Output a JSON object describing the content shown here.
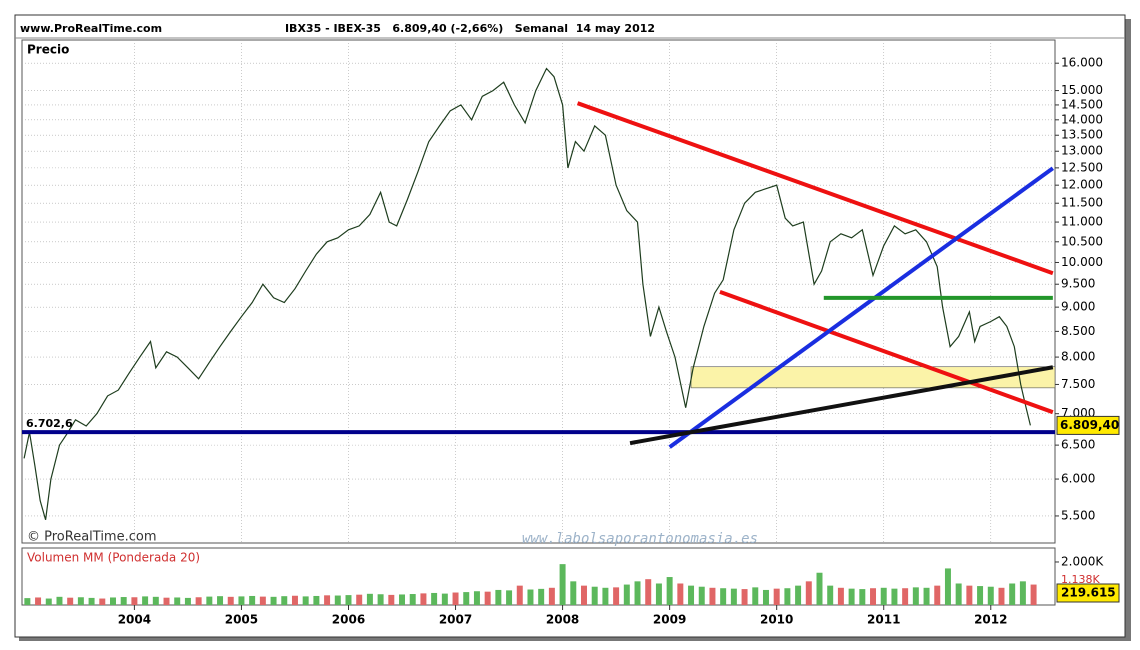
{
  "header": {
    "site": "www.ProRealTime.com",
    "title": "IBX35 - IBEX-35   6.809,40 (-2,66%)   Semanal  14 may 2012",
    "copyright": "© ProRealTime.com",
    "watermark": "www.labolsaporantonomasia.es"
  },
  "chart_data": [
    {
      "type": "line",
      "title": "Precio",
      "color": "#1e3d1e",
      "log": true,
      "grid": true,
      "xlim": [
        2002.95,
        2012.6
      ],
      "xticks": [
        2004,
        2005,
        2006,
        2007,
        2008,
        2009,
        2010,
        2011,
        2012
      ],
      "ylim": [
        5160,
        16900
      ],
      "yticks": [
        {
          "value": 5500,
          "label": "5.500"
        },
        {
          "value": 6000,
          "label": "6.000"
        },
        {
          "value": 6500,
          "label": "6.500"
        },
        {
          "value": 7000,
          "label": "7.000"
        },
        {
          "value": 7500,
          "label": "7.500"
        },
        {
          "value": 8000,
          "label": "8.000"
        },
        {
          "value": 8500,
          "label": "8.500"
        },
        {
          "value": 9000,
          "label": "9.000"
        },
        {
          "value": 9500,
          "label": "9.500"
        },
        {
          "value": 10000,
          "label": "10.000"
        },
        {
          "value": 10500,
          "label": "10.500"
        },
        {
          "value": 11000,
          "label": "11.000"
        },
        {
          "value": 11500,
          "label": "11.500"
        },
        {
          "value": 12000,
          "label": "12.000"
        },
        {
          "value": 12500,
          "label": "12.500"
        },
        {
          "value": 13000,
          "label": "13.000"
        },
        {
          "value": 13500,
          "label": "13.500"
        },
        {
          "value": 14000,
          "label": "14.000"
        },
        {
          "value": 14500,
          "label": "14.500"
        },
        {
          "value": 15000,
          "label": "15.000"
        },
        {
          "value": 16000,
          "label": "16.000"
        }
      ],
      "x": [
        2002.97,
        2003.02,
        2003.07,
        2003.12,
        2003.17,
        2003.22,
        2003.3,
        2003.38,
        2003.45,
        2003.55,
        2003.65,
        2003.75,
        2003.85,
        2003.95,
        2004.05,
        2004.15,
        2004.2,
        2004.3,
        2004.4,
        2004.5,
        2004.6,
        2004.7,
        2004.8,
        2004.9,
        2005.0,
        2005.1,
        2005.2,
        2005.3,
        2005.4,
        2005.5,
        2005.6,
        2005.7,
        2005.8,
        2005.9,
        2006.0,
        2006.1,
        2006.2,
        2006.3,
        2006.38,
        2006.45,
        2006.55,
        2006.65,
        2006.75,
        2006.85,
        2006.95,
        2007.05,
        2007.15,
        2007.25,
        2007.35,
        2007.45,
        2007.55,
        2007.65,
        2007.75,
        2007.85,
        2007.92,
        2008.0,
        2008.05,
        2008.12,
        2008.2,
        2008.3,
        2008.4,
        2008.5,
        2008.6,
        2008.7,
        2008.75,
        2008.82,
        2008.9,
        2008.97,
        2009.05,
        2009.15,
        2009.22,
        2009.32,
        2009.42,
        2009.5,
        2009.6,
        2009.7,
        2009.8,
        2009.9,
        2010.0,
        2010.08,
        2010.15,
        2010.25,
        2010.35,
        2010.42,
        2010.5,
        2010.6,
        2010.7,
        2010.8,
        2010.9,
        2011.0,
        2011.1,
        2011.2,
        2011.3,
        2011.4,
        2011.5,
        2011.55,
        2011.62,
        2011.7,
        2011.8,
        2011.85,
        2011.9,
        2012.0,
        2012.08,
        2012.15,
        2012.22,
        2012.28,
        2012.33,
        2012.37
      ],
      "values": [
        6300,
        6700,
        6200,
        5700,
        5450,
        6000,
        6500,
        6700,
        6900,
        6800,
        7000,
        7300,
        7400,
        7700,
        8000,
        8300,
        7800,
        8100,
        8000,
        7800,
        7600,
        7900,
        8200,
        8500,
        8800,
        9100,
        9500,
        9200,
        9100,
        9400,
        9800,
        10200,
        10500,
        10600,
        10800,
        10900,
        11200,
        11800,
        11000,
        10900,
        11600,
        12400,
        13300,
        13800,
        14300,
        14500,
        14000,
        14800,
        15000,
        15300,
        14500,
        13900,
        15000,
        15800,
        15500,
        14500,
        12500,
        13300,
        13000,
        13800,
        13500,
        12000,
        11300,
        11000,
        9500,
        8400,
        9000,
        8500,
        8000,
        7100,
        7800,
        8600,
        9300,
        9600,
        10800,
        11500,
        11800,
        11900,
        12000,
        11100,
        10900,
        11000,
        9500,
        9800,
        10500,
        10700,
        10600,
        10800,
        9700,
        10400,
        10900,
        10700,
        10800,
        10500,
        9900,
        9000,
        8200,
        8400,
        8900,
        8300,
        8600,
        8700,
        8800,
        8600,
        8200,
        7500,
        7100,
        6809.4
      ],
      "last_label": "6.809,40",
      "level": {
        "value": 6702.6,
        "label": "6.702,6",
        "color": "#00008b"
      },
      "band": {
        "x": [
          2009.2,
          2012.6
        ],
        "y": [
          7440,
          7820
        ],
        "color": "#fbf3a8"
      },
      "trend_lines": [
        {
          "color": "#ee1111",
          "x": [
            2008.14,
            2012.58
          ],
          "y": [
            14560,
            9750
          ]
        },
        {
          "color": "#ee1111",
          "x": [
            2009.47,
            2012.58
          ],
          "y": [
            9330,
            7025
          ]
        },
        {
          "color": "#1a2ee0",
          "x": [
            2009.0,
            2012.58
          ],
          "y": [
            6470,
            12490
          ]
        },
        {
          "color": "#111111",
          "x": [
            2008.63,
            2012.58
          ],
          "y": [
            6530,
            7810
          ]
        },
        {
          "color": "#22962a",
          "x": [
            2010.44,
            2012.58
          ],
          "y": [
            9200,
            9200
          ]
        }
      ]
    },
    {
      "type": "bar",
      "title": "Volumen MM (Ponderada 20)",
      "color": "#5cb85c",
      "xlim": [
        2002.95,
        2012.6
      ],
      "ylim": [
        0,
        2650
      ],
      "yticks": [
        {
          "value": 2000,
          "label": "2.000K"
        }
      ],
      "ma_label": "1.138K",
      "last_label": "219.615",
      "x": [
        2003.0,
        2003.1,
        2003.2,
        2003.3,
        2003.4,
        2003.5,
        2003.6,
        2003.7,
        2003.8,
        2003.9,
        2004.0,
        2004.1,
        2004.2,
        2004.3,
        2004.4,
        2004.5,
        2004.6,
        2004.7,
        2004.8,
        2004.9,
        2005.0,
        2005.1,
        2005.2,
        2005.3,
        2005.4,
        2005.5,
        2005.6,
        2005.7,
        2005.8,
        2005.9,
        2006.0,
        2006.1,
        2006.2,
        2006.3,
        2006.4,
        2006.5,
        2006.6,
        2006.7,
        2006.8,
        2006.9,
        2007.0,
        2007.1,
        2007.2,
        2007.3,
        2007.4,
        2007.5,
        2007.6,
        2007.7,
        2007.8,
        2007.9,
        2008.0,
        2008.1,
        2008.2,
        2008.3,
        2008.4,
        2008.5,
        2008.6,
        2008.7,
        2008.8,
        2008.9,
        2009.0,
        2009.1,
        2009.2,
        2009.3,
        2009.4,
        2009.5,
        2009.6,
        2009.7,
        2009.8,
        2009.9,
        2010.0,
        2010.1,
        2010.2,
        2010.3,
        2010.4,
        2010.5,
        2010.6,
        2010.7,
        2010.8,
        2010.9,
        2011.0,
        2011.1,
        2011.2,
        2011.3,
        2011.4,
        2011.5,
        2011.6,
        2011.7,
        2011.8,
        2011.9,
        2012.0,
        2012.1,
        2012.2,
        2012.3,
        2012.4
      ],
      "values": [
        320,
        350,
        300,
        380,
        340,
        360,
        330,
        300,
        350,
        370,
        360,
        400,
        380,
        340,
        350,
        330,
        360,
        390,
        410,
        380,
        400,
        420,
        390,
        380,
        410,
        430,
        400,
        420,
        450,
        440,
        460,
        480,
        520,
        500,
        470,
        490,
        510,
        540,
        560,
        530,
        580,
        600,
        640,
        620,
        700,
        680,
        900,
        720,
        750,
        800,
        1900,
        1100,
        900,
        850,
        800,
        820,
        950,
        1100,
        1200,
        1000,
        1300,
        1000,
        900,
        850,
        800,
        780,
        760,
        740,
        820,
        700,
        760,
        780,
        900,
        1100,
        1500,
        900,
        800,
        760,
        740,
        780,
        800,
        760,
        780,
        820,
        800,
        900,
        1700,
        1000,
        900,
        880,
        850,
        800,
        1000,
        1100,
        950
      ]
    }
  ]
}
